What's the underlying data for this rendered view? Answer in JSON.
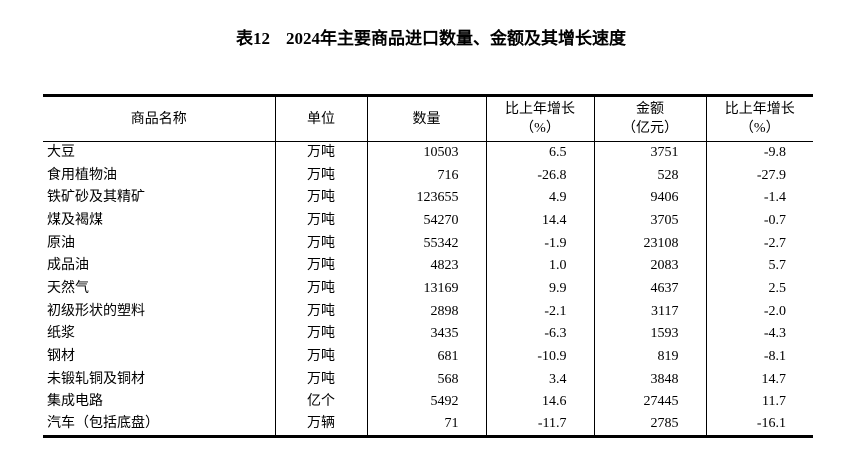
{
  "title": {
    "label": "表12",
    "text": "2024年主要商品进口数量、金额及其增长速度"
  },
  "headers": [
    [
      "商品名称",
      ""
    ],
    [
      "单位",
      ""
    ],
    [
      "数量",
      ""
    ],
    [
      "比上年增长",
      "（%）"
    ],
    [
      "金额",
      "（亿元）"
    ],
    [
      "比上年增长",
      "（%）"
    ]
  ],
  "rows": [
    [
      "大豆",
      "万吨",
      "10503",
      "6.5",
      "3751",
      "-9.8"
    ],
    [
      "食用植物油",
      "万吨",
      "716",
      "-26.8",
      "528",
      "-27.9"
    ],
    [
      "铁矿砂及其精矿",
      "万吨",
      "123655",
      "4.9",
      "9406",
      "-1.4"
    ],
    [
      "煤及褐煤",
      "万吨",
      "54270",
      "14.4",
      "3705",
      "-0.7"
    ],
    [
      "原油",
      "万吨",
      "55342",
      "-1.9",
      "23108",
      "-2.7"
    ],
    [
      "成品油",
      "万吨",
      "4823",
      "1.0",
      "2083",
      "5.7"
    ],
    [
      "天然气",
      "万吨",
      "13169",
      "9.9",
      "4637",
      "2.5"
    ],
    [
      "初级形状的塑料",
      "万吨",
      "2898",
      "-2.1",
      "3117",
      "-2.0"
    ],
    [
      "纸浆",
      "万吨",
      "3435",
      "-6.3",
      "1593",
      "-4.3"
    ],
    [
      "钢材",
      "万吨",
      "681",
      "-10.9",
      "819",
      "-8.1"
    ],
    [
      "未锻轧铜及铜材",
      "万吨",
      "568",
      "3.4",
      "3848",
      "14.7"
    ],
    [
      "集成电路",
      "亿个",
      "5492",
      "14.6",
      "27445",
      "11.7"
    ],
    [
      "汽车（包括底盘）",
      "万辆",
      "71",
      "-11.7",
      "2785",
      "-16.1"
    ]
  ]
}
